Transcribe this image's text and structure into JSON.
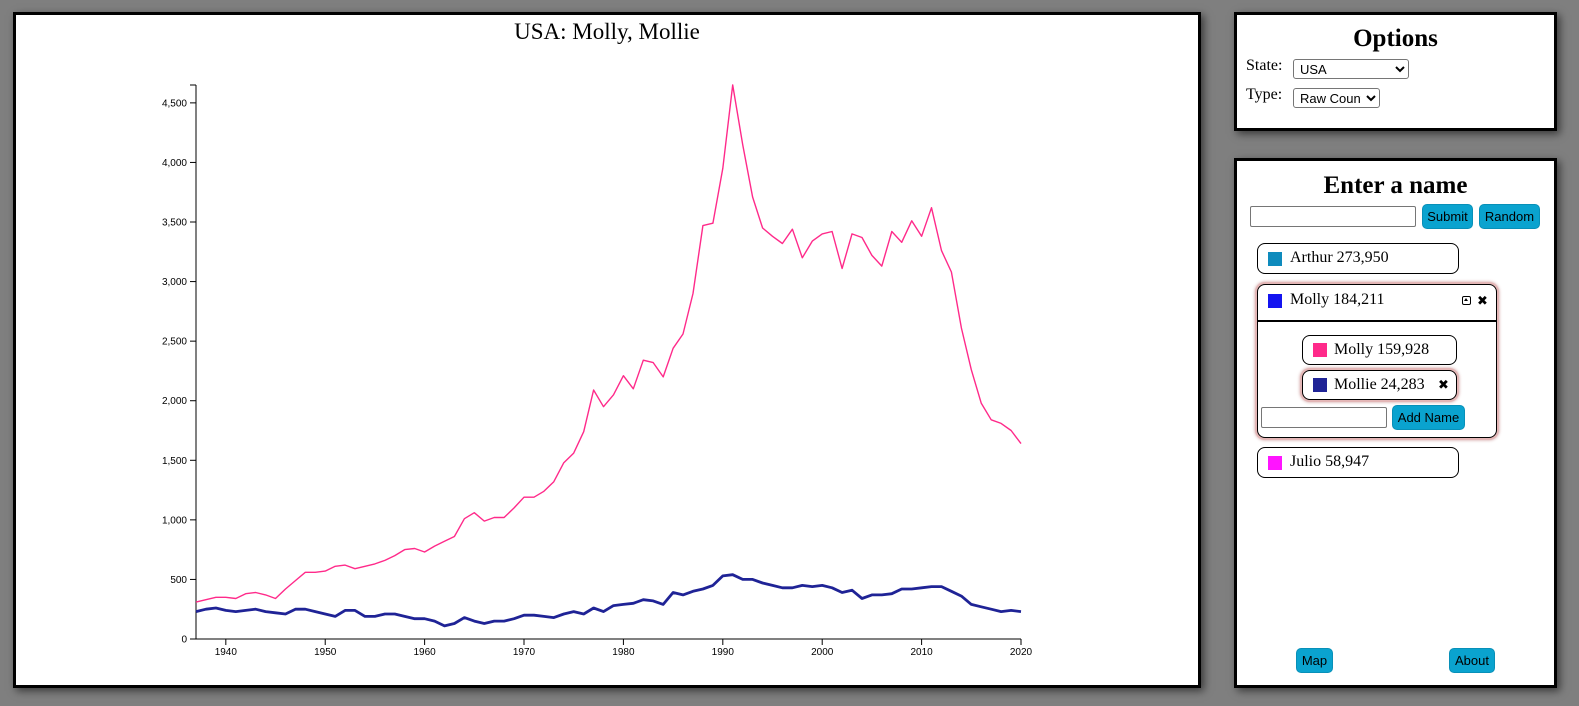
{
  "chart_panel": {
    "chart_data": {
      "type": "line",
      "title": "USA: Molly, Mollie",
      "xlabel": "",
      "ylabel": "",
      "xlim": [
        1937,
        2020
      ],
      "ylim": [
        0,
        4650
      ],
      "x_ticks": [
        1940,
        1950,
        1960,
        1970,
        1980,
        1990,
        2000,
        2010,
        2020
      ],
      "y_ticks": [
        0,
        500,
        1000,
        1500,
        2000,
        2500,
        3000,
        3500,
        4000,
        4500
      ],
      "y_tick_labels": [
        "0",
        "500",
        "1,000",
        "1,500",
        "2,000",
        "2,500",
        "3,000",
        "3,500",
        "4,000",
        "4,500"
      ],
      "x": [
        1937,
        1938,
        1939,
        1940,
        1941,
        1942,
        1943,
        1944,
        1945,
        1946,
        1947,
        1948,
        1949,
        1950,
        1951,
        1952,
        1953,
        1954,
        1955,
        1956,
        1957,
        1958,
        1959,
        1960,
        1961,
        1962,
        1963,
        1964,
        1965,
        1966,
        1967,
        1968,
        1969,
        1970,
        1971,
        1972,
        1973,
        1974,
        1975,
        1976,
        1977,
        1978,
        1979,
        1980,
        1981,
        1982,
        1983,
        1984,
        1985,
        1986,
        1987,
        1988,
        1989,
        1990,
        1991,
        1992,
        1993,
        1994,
        1995,
        1996,
        1997,
        1998,
        1999,
        2000,
        2001,
        2002,
        2003,
        2004,
        2005,
        2006,
        2007,
        2008,
        2009,
        2010,
        2011,
        2012,
        2013,
        2014,
        2015,
        2016,
        2017,
        2018,
        2019,
        2020
      ],
      "series": [
        {
          "name": "Molly",
          "color": "#ff2a8a",
          "values": [
            310,
            330,
            350,
            350,
            340,
            380,
            390,
            370,
            340,
            420,
            490,
            560,
            560,
            570,
            610,
            620,
            590,
            610,
            630,
            660,
            700,
            750,
            760,
            730,
            780,
            820,
            860,
            1010,
            1060,
            990,
            1020,
            1020,
            1100,
            1190,
            1190,
            1240,
            1320,
            1480,
            1560,
            1740,
            2090,
            1950,
            2050,
            2210,
            2100,
            2340,
            2320,
            2200,
            2440,
            2560,
            2900,
            3470,
            3490,
            3950,
            4650,
            4150,
            3710,
            3450,
            3380,
            3320,
            3440,
            3200,
            3340,
            3400,
            3420,
            3110,
            3400,
            3370,
            3220,
            3130,
            3420,
            3330,
            3510,
            3380,
            3620,
            3260,
            3080,
            2610,
            2260,
            1980,
            1840,
            1810,
            1750,
            1640
          ]
        },
        {
          "name": "Mollie",
          "color": "#1f2396",
          "values": [
            230,
            250,
            260,
            240,
            230,
            240,
            250,
            230,
            220,
            210,
            250,
            250,
            230,
            210,
            190,
            240,
            240,
            190,
            190,
            210,
            210,
            190,
            170,
            170,
            150,
            110,
            130,
            180,
            150,
            130,
            150,
            150,
            170,
            200,
            200,
            190,
            180,
            210,
            230,
            210,
            260,
            230,
            280,
            290,
            300,
            330,
            320,
            290,
            390,
            370,
            400,
            420,
            450,
            530,
            540,
            500,
            500,
            470,
            450,
            430,
            430,
            450,
            440,
            450,
            430,
            390,
            410,
            340,
            370,
            370,
            380,
            420,
            420,
            430,
            440,
            440,
            400,
            360,
            290,
            270,
            250,
            230,
            240,
            230
          ]
        }
      ],
      "legend": "none",
      "grid": false
    }
  },
  "options_panel": {
    "title": "Options",
    "state_label": "State:",
    "state_value": "USA",
    "type_label": "Type:",
    "type_value": "Raw Count"
  },
  "names_panel": {
    "title": "Enter a name",
    "name_input_value": "",
    "submit_label": "Submit",
    "random_label": "Random",
    "entries": [
      {
        "label": "Arthur 273,950",
        "color": "#0e8bbd"
      },
      {
        "label": "Molly 184,211",
        "color": "#1414f0",
        "expanded": true,
        "children": [
          {
            "label": "Molly 159,928",
            "color": "#ff2a8a"
          },
          {
            "label": "Mollie 24,283",
            "color": "#1f2396"
          }
        ],
        "add_input_value": "",
        "add_button_label": "Add Name"
      },
      {
        "label": "Julio 58,947",
        "color": "#ff14ff"
      }
    ],
    "map_label": "Map",
    "about_label": "About"
  }
}
